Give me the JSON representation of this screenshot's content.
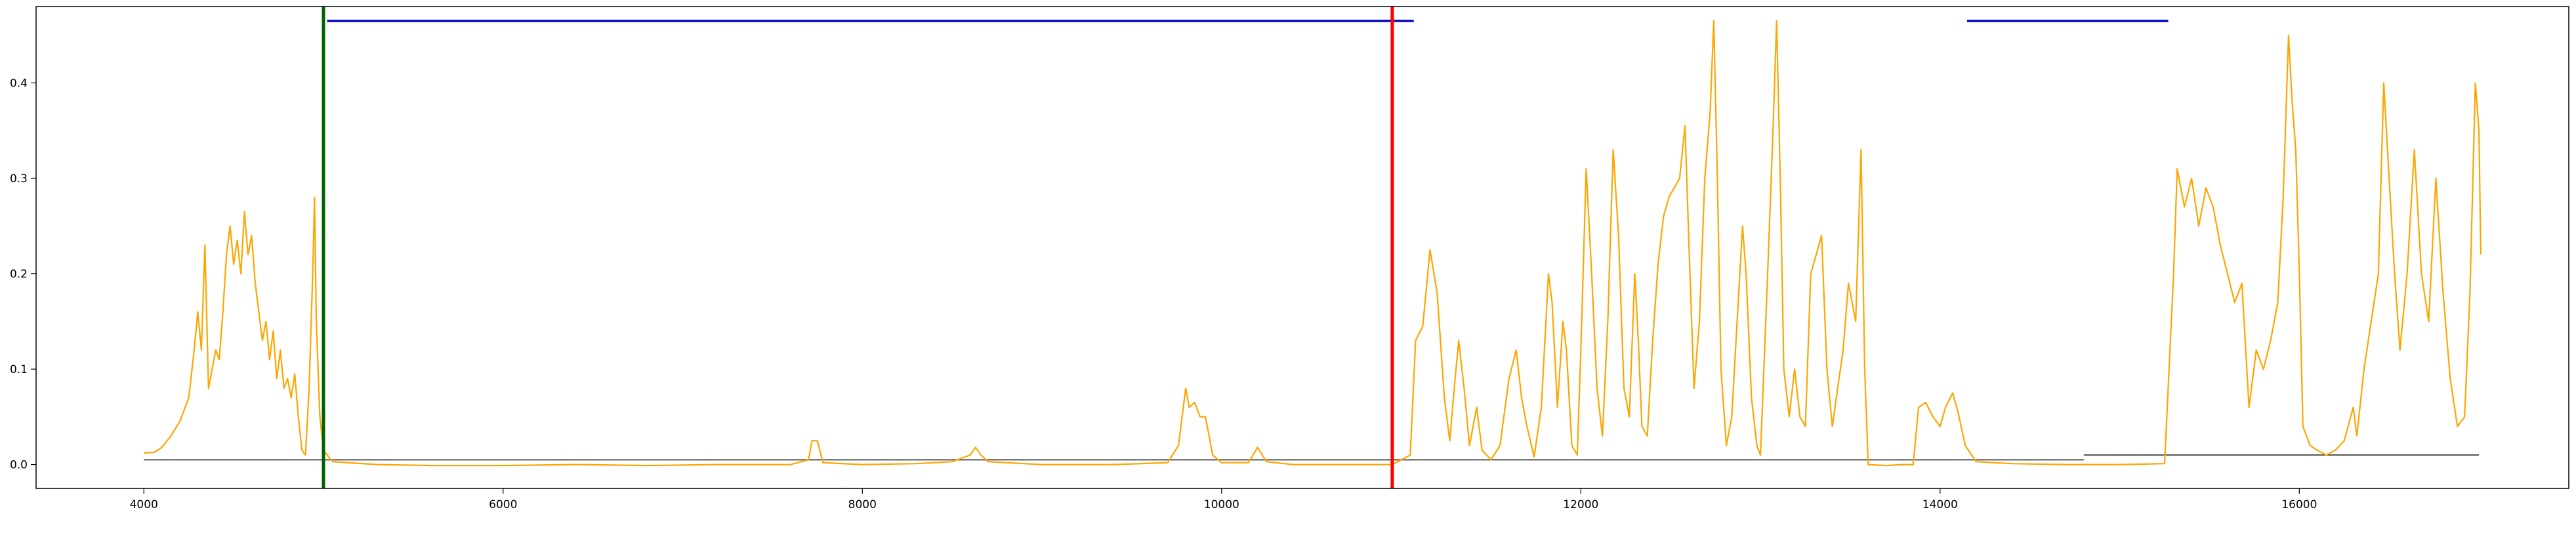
{
  "chart_data": {
    "type": "line",
    "title": "",
    "xlabel": "",
    "ylabel": "",
    "xlim": [
      3400,
      17500
    ],
    "ylim": [
      -0.025,
      0.48
    ],
    "x_ticks": [
      4000,
      6000,
      8000,
      10000,
      12000,
      14000,
      16000
    ],
    "y_ticks": [
      0.0,
      0.1,
      0.2,
      0.3,
      0.4
    ],
    "x_tick_labels": [
      "4000",
      "6000",
      "8000",
      "10000",
      "12000",
      "14000",
      "16000"
    ],
    "y_tick_labels": [
      "0.0",
      "0.1",
      "0.2",
      "0.3",
      "0.4"
    ],
    "grid": false,
    "legend": "none",
    "colors": {
      "signal": "#ffa500",
      "baseline": "#555555",
      "segment": "#0000cc",
      "marker_start": "#006400",
      "marker_end": "#ff0000"
    },
    "signal_color": "#ffa500",
    "signal": [
      [
        4000,
        0.012
      ],
      [
        4060,
        0.013
      ],
      [
        4100,
        0.018
      ],
      [
        4150,
        0.03
      ],
      [
        4200,
        0.045
      ],
      [
        4250,
        0.07
      ],
      [
        4280,
        0.12
      ],
      [
        4300,
        0.16
      ],
      [
        4320,
        0.12
      ],
      [
        4340,
        0.23
      ],
      [
        4360,
        0.08
      ],
      [
        4380,
        0.1
      ],
      [
        4400,
        0.12
      ],
      [
        4420,
        0.11
      ],
      [
        4440,
        0.16
      ],
      [
        4460,
        0.22
      ],
      [
        4480,
        0.25
      ],
      [
        4500,
        0.21
      ],
      [
        4520,
        0.235
      ],
      [
        4540,
        0.2
      ],
      [
        4560,
        0.265
      ],
      [
        4580,
        0.22
      ],
      [
        4600,
        0.24
      ],
      [
        4620,
        0.19
      ],
      [
        4640,
        0.16
      ],
      [
        4660,
        0.13
      ],
      [
        4680,
        0.15
      ],
      [
        4700,
        0.11
      ],
      [
        4720,
        0.14
      ],
      [
        4740,
        0.09
      ],
      [
        4760,
        0.12
      ],
      [
        4780,
        0.08
      ],
      [
        4800,
        0.09
      ],
      [
        4820,
        0.07
      ],
      [
        4840,
        0.095
      ],
      [
        4860,
        0.05
      ],
      [
        4880,
        0.015
      ],
      [
        4900,
        0.01
      ],
      [
        4920,
        0.08
      ],
      [
        4940,
        0.2
      ],
      [
        4950,
        0.28
      ],
      [
        4960,
        0.15
      ],
      [
        4980,
        0.05
      ],
      [
        5000,
        0.015
      ],
      [
        5050,
        0.003
      ],
      [
        5300,
        0.0
      ],
      [
        5600,
        -0.001
      ],
      [
        6000,
        -0.001
      ],
      [
        6400,
        0.0
      ],
      [
        6800,
        -0.001
      ],
      [
        7200,
        0.0
      ],
      [
        7600,
        0.0
      ],
      [
        7700,
        0.005
      ],
      [
        7720,
        0.025
      ],
      [
        7750,
        0.025
      ],
      [
        7780,
        0.002
      ],
      [
        8000,
        0.0
      ],
      [
        8300,
        0.001
      ],
      [
        8500,
        0.003
      ],
      [
        8600,
        0.01
      ],
      [
        8630,
        0.018
      ],
      [
        8660,
        0.01
      ],
      [
        8700,
        0.003
      ],
      [
        9000,
        0.0
      ],
      [
        9400,
        0.0
      ],
      [
        9700,
        0.002
      ],
      [
        9760,
        0.02
      ],
      [
        9800,
        0.08
      ],
      [
        9820,
        0.06
      ],
      [
        9850,
        0.065
      ],
      [
        9880,
        0.05
      ],
      [
        9910,
        0.05
      ],
      [
        9950,
        0.01
      ],
      [
        10000,
        0.002
      ],
      [
        10150,
        0.002
      ],
      [
        10200,
        0.018
      ],
      [
        10250,
        0.003
      ],
      [
        10400,
        0.0
      ],
      [
        10700,
        0.0
      ],
      [
        10950,
        0.0
      ],
      [
        11050,
        0.01
      ],
      [
        11080,
        0.13
      ],
      [
        11120,
        0.145
      ],
      [
        11160,
        0.225
      ],
      [
        11200,
        0.18
      ],
      [
        11240,
        0.07
      ],
      [
        11270,
        0.025
      ],
      [
        11300,
        0.09
      ],
      [
        11320,
        0.13
      ],
      [
        11350,
        0.08
      ],
      [
        11380,
        0.02
      ],
      [
        11420,
        0.06
      ],
      [
        11450,
        0.015
      ],
      [
        11500,
        0.005
      ],
      [
        11550,
        0.02
      ],
      [
        11600,
        0.09
      ],
      [
        11640,
        0.12
      ],
      [
        11670,
        0.07
      ],
      [
        11700,
        0.04
      ],
      [
        11740,
        0.008
      ],
      [
        11780,
        0.06
      ],
      [
        11820,
        0.2
      ],
      [
        11840,
        0.17
      ],
      [
        11870,
        0.06
      ],
      [
        11900,
        0.15
      ],
      [
        11920,
        0.12
      ],
      [
        11950,
        0.02
      ],
      [
        11980,
        0.01
      ],
      [
        12000,
        0.12
      ],
      [
        12030,
        0.31
      ],
      [
        12060,
        0.2
      ],
      [
        12090,
        0.08
      ],
      [
        12120,
        0.03
      ],
      [
        12150,
        0.15
      ],
      [
        12180,
        0.33
      ],
      [
        12210,
        0.24
      ],
      [
        12240,
        0.08
      ],
      [
        12270,
        0.05
      ],
      [
        12300,
        0.2
      ],
      [
        12320,
        0.13
      ],
      [
        12340,
        0.04
      ],
      [
        12370,
        0.03
      ],
      [
        12400,
        0.13
      ],
      [
        12430,
        0.21
      ],
      [
        12460,
        0.26
      ],
      [
        12490,
        0.28
      ],
      [
        12520,
        0.29
      ],
      [
        12550,
        0.3
      ],
      [
        12580,
        0.355
      ],
      [
        12600,
        0.24
      ],
      [
        12630,
        0.08
      ],
      [
        12660,
        0.15
      ],
      [
        12690,
        0.3
      ],
      [
        12720,
        0.37
      ],
      [
        12740,
        0.465
      ],
      [
        12760,
        0.3
      ],
      [
        12780,
        0.1
      ],
      [
        12810,
        0.02
      ],
      [
        12840,
        0.05
      ],
      [
        12870,
        0.15
      ],
      [
        12900,
        0.25
      ],
      [
        12920,
        0.2
      ],
      [
        12950,
        0.07
      ],
      [
        12980,
        0.02
      ],
      [
        13000,
        0.01
      ],
      [
        13040,
        0.2
      ],
      [
        13070,
        0.35
      ],
      [
        13090,
        0.465
      ],
      [
        13110,
        0.3
      ],
      [
        13130,
        0.1
      ],
      [
        13160,
        0.05
      ],
      [
        13190,
        0.1
      ],
      [
        13220,
        0.05
      ],
      [
        13250,
        0.04
      ],
      [
        13280,
        0.2
      ],
      [
        13310,
        0.22
      ],
      [
        13340,
        0.24
      ],
      [
        13370,
        0.1
      ],
      [
        13400,
        0.04
      ],
      [
        13430,
        0.08
      ],
      [
        13460,
        0.12
      ],
      [
        13490,
        0.19
      ],
      [
        13510,
        0.17
      ],
      [
        13530,
        0.15
      ],
      [
        13560,
        0.33
      ],
      [
        13580,
        0.1
      ],
      [
        13600,
        0.0
      ],
      [
        13700,
        -0.001
      ],
      [
        13800,
        0.0
      ],
      [
        13850,
        0.0
      ],
      [
        13880,
        0.06
      ],
      [
        13920,
        0.065
      ],
      [
        13960,
        0.05
      ],
      [
        14000,
        0.04
      ],
      [
        14030,
        0.06
      ],
      [
        14070,
        0.075
      ],
      [
        14100,
        0.055
      ],
      [
        14140,
        0.02
      ],
      [
        14200,
        0.003
      ],
      [
        14400,
        0.001
      ],
      [
        14700,
        0.0
      ],
      [
        15000,
        0.0
      ],
      [
        15250,
        0.001
      ],
      [
        15300,
        0.2
      ],
      [
        15320,
        0.31
      ],
      [
        15360,
        0.27
      ],
      [
        15400,
        0.3
      ],
      [
        15440,
        0.25
      ],
      [
        15480,
        0.29
      ],
      [
        15520,
        0.27
      ],
      [
        15560,
        0.23
      ],
      [
        15600,
        0.2
      ],
      [
        15640,
        0.17
      ],
      [
        15680,
        0.19
      ],
      [
        15720,
        0.06
      ],
      [
        15760,
        0.12
      ],
      [
        15800,
        0.1
      ],
      [
        15840,
        0.13
      ],
      [
        15880,
        0.17
      ],
      [
        15910,
        0.28
      ],
      [
        15940,
        0.45
      ],
      [
        15960,
        0.38
      ],
      [
        15980,
        0.33
      ],
      [
        16000,
        0.2
      ],
      [
        16020,
        0.04
      ],
      [
        16060,
        0.02
      ],
      [
        16100,
        0.015
      ],
      [
        16150,
        0.01
      ],
      [
        16200,
        0.015
      ],
      [
        16250,
        0.025
      ],
      [
        16300,
        0.06
      ],
      [
        16320,
        0.03
      ],
      [
        16360,
        0.1
      ],
      [
        16400,
        0.15
      ],
      [
        16440,
        0.2
      ],
      [
        16470,
        0.4
      ],
      [
        16500,
        0.3
      ],
      [
        16530,
        0.2
      ],
      [
        16560,
        0.12
      ],
      [
        16600,
        0.2
      ],
      [
        16640,
        0.33
      ],
      [
        16680,
        0.2
      ],
      [
        16720,
        0.15
      ],
      [
        16760,
        0.3
      ],
      [
        16800,
        0.18
      ],
      [
        16840,
        0.09
      ],
      [
        16880,
        0.04
      ],
      [
        16920,
        0.05
      ],
      [
        16950,
        0.18
      ],
      [
        16980,
        0.4
      ],
      [
        17000,
        0.35
      ],
      [
        17010,
        0.22
      ]
    ],
    "baselines": [
      {
        "color": "#555555",
        "x": [
          4000,
          14800
        ],
        "y": 0.005
      },
      {
        "color": "#555555",
        "x": [
          14800,
          17000
        ],
        "y": 0.01
      }
    ],
    "segments": [
      {
        "color": "#0000cc",
        "x": [
          5020,
          11070
        ],
        "y": 0.465
      },
      {
        "color": "#0000cc",
        "x": [
          14150,
          15270
        ],
        "y": 0.465
      }
    ],
    "vertical_markers": [
      {
        "color": "#006400",
        "x": 5000
      },
      {
        "color": "#ff0000",
        "x": 10950
      }
    ]
  }
}
